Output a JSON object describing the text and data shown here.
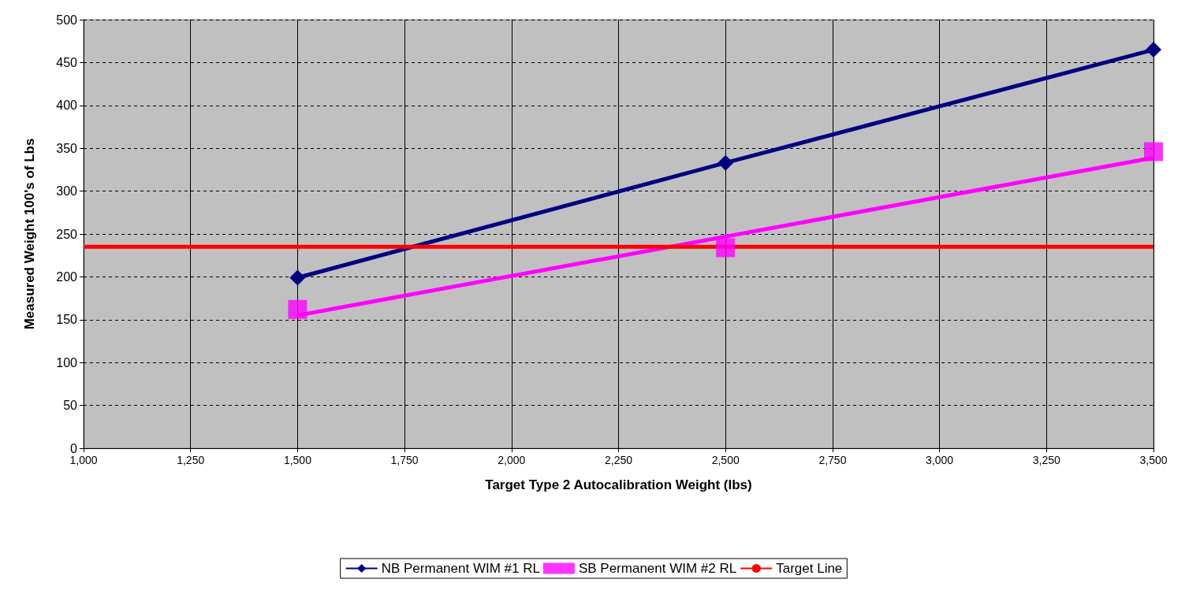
{
  "chart_data": {
    "type": "line",
    "xlabel": "Target Type 2 Autocalibration Weight (lbs)",
    "ylabel": "Measured Weight 100's of Lbs",
    "xlim": [
      1000,
      3500
    ],
    "xticks": [
      {
        "value": 1000,
        "label": "1,000"
      },
      {
        "value": 1250,
        "label": "1,250"
      },
      {
        "value": 1500,
        "label": "1,500"
      },
      {
        "value": 1750,
        "label": "1,750"
      },
      {
        "value": 2000,
        "label": "2,000"
      },
      {
        "value": 2250,
        "label": "2,250"
      },
      {
        "value": 2500,
        "label": "2,500"
      },
      {
        "value": 2750,
        "label": "2,750"
      },
      {
        "value": 3000,
        "label": "3,000"
      },
      {
        "value": 3250,
        "label": "3,250"
      },
      {
        "value": 3500,
        "label": "3,500"
      }
    ],
    "ylim": [
      0,
      500
    ],
    "yticks": [
      0,
      50,
      100,
      150,
      200,
      250,
      300,
      350,
      400,
      450,
      500
    ],
    "grid": true,
    "legend": "bottom",
    "series": [
      {
        "name": "NB Permanent WIM #1 RL",
        "color": "#000080",
        "marker": "diamond",
        "x": [
          1500,
          2500,
          3500
        ],
        "values": [
          199,
          333,
          465
        ]
      },
      {
        "name": "SB Permanent WIM #2 RL",
        "color": "#ff00ff",
        "type": "scatter",
        "marker": "square",
        "x": [
          1500,
          2500,
          3500
        ],
        "values": [
          162,
          234,
          346
        ]
      },
      {
        "color": "#ff00ff",
        "marker": "none",
        "x": [
          1500,
          3500
        ],
        "values": [
          155,
          339
        ]
      },
      {
        "name": "Target Line",
        "color": "#ff0000",
        "marker": "none",
        "x": [
          1000,
          3500
        ],
        "values": [
          235,
          235
        ]
      }
    ]
  }
}
